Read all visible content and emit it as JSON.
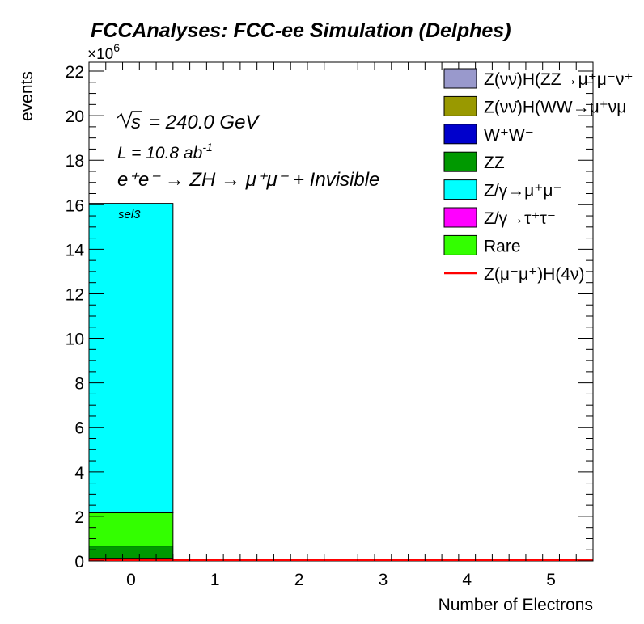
{
  "chart_data": {
    "type": "bar",
    "title": "FCCAnalyses: FCC-ee Simulation (Delphes)",
    "xlabel": "Number of Electrons",
    "ylabel": "events",
    "y_multiplier": "×10",
    "y_multiplier_exp": "6",
    "xlim": [
      -0.5,
      5.5
    ],
    "ylim": [
      0,
      22.4
    ],
    "y_unit_scale": 1000000,
    "x_ticks": [
      "0",
      "1",
      "2",
      "3",
      "4",
      "5"
    ],
    "y_ticks": [
      "0",
      "2",
      "4",
      "6",
      "8",
      "10",
      "12",
      "14",
      "16",
      "18",
      "20",
      "22"
    ],
    "grid": false,
    "legend_position": "top-right",
    "categories": [
      "0",
      "1",
      "2",
      "3",
      "4",
      "5"
    ],
    "stacked": true,
    "series": [
      {
        "name": "Z(νν̄)H(ZZ→μ⁺μ⁻ν⁺",
        "color": "#9999cc",
        "values": [
          0.02,
          0,
          0,
          0,
          0,
          0
        ]
      },
      {
        "name": "Z(νν̄)H(WW→μ⁺νμ",
        "color": "#999900",
        "values": [
          0.02,
          0,
          0,
          0,
          0,
          0
        ]
      },
      {
        "name": "W⁺W⁻",
        "color": "#0000cc",
        "values": [
          0.12,
          0,
          0,
          0,
          0,
          0
        ]
      },
      {
        "name": "ZZ",
        "color": "#009900",
        "values": [
          0.55,
          0,
          0,
          0,
          0,
          0
        ]
      },
      {
        "name": "Z/γ→μ⁺μ⁻",
        "color": "#00ffff",
        "values": [
          13.9,
          0,
          0,
          0,
          0,
          0
        ]
      },
      {
        "name": "Z/γ→τ⁺τ⁻",
        "color": "#ff00ff",
        "values": [
          0.0,
          0,
          0,
          0,
          0,
          0
        ]
      },
      {
        "name": "Rare",
        "color": "#33ff00",
        "values": [
          1.49,
          0,
          0,
          0,
          0,
          0
        ]
      }
    ],
    "signal": {
      "name": "Z(μ⁻μ⁺)H(4ν)",
      "color": "#ff0000",
      "values": [
        0.01,
        0,
        0,
        0,
        0,
        0
      ]
    },
    "stack_order": [
      "W⁺W⁻",
      "ZZ",
      "Rare",
      "Z/γ→μ⁺μ⁻"
    ],
    "annotations": {
      "sqrt_s": "s",
      "energy": "= 240.0 GeV",
      "lumi": "L = 10.8 ab",
      "lumi_exp": "-1",
      "process": "e⁺e⁻ → ZH → μ⁺μ⁻ + Invisible",
      "selection": "sel3"
    }
  }
}
